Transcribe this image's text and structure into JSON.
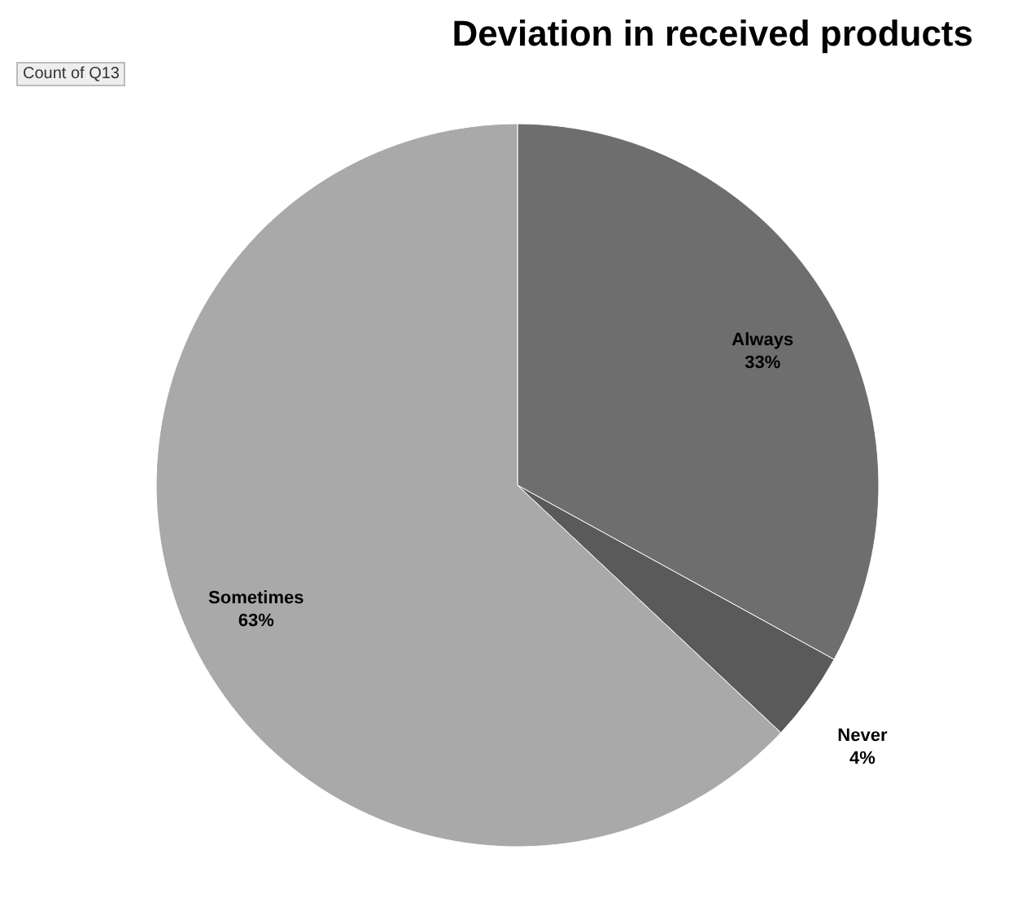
{
  "chart_data": {
    "type": "pie",
    "title": "Deviation in received products",
    "annotations": [
      "Count of Q13"
    ],
    "categories": [
      "Always",
      "Never",
      "Sometimes"
    ],
    "values": [
      33,
      4,
      63
    ],
    "value_labels": [
      "33%",
      "4%",
      "63%"
    ],
    "colors": [
      "#6e6e6e",
      "#5a5a5a",
      "#a9a9a9"
    ],
    "legend": false
  }
}
